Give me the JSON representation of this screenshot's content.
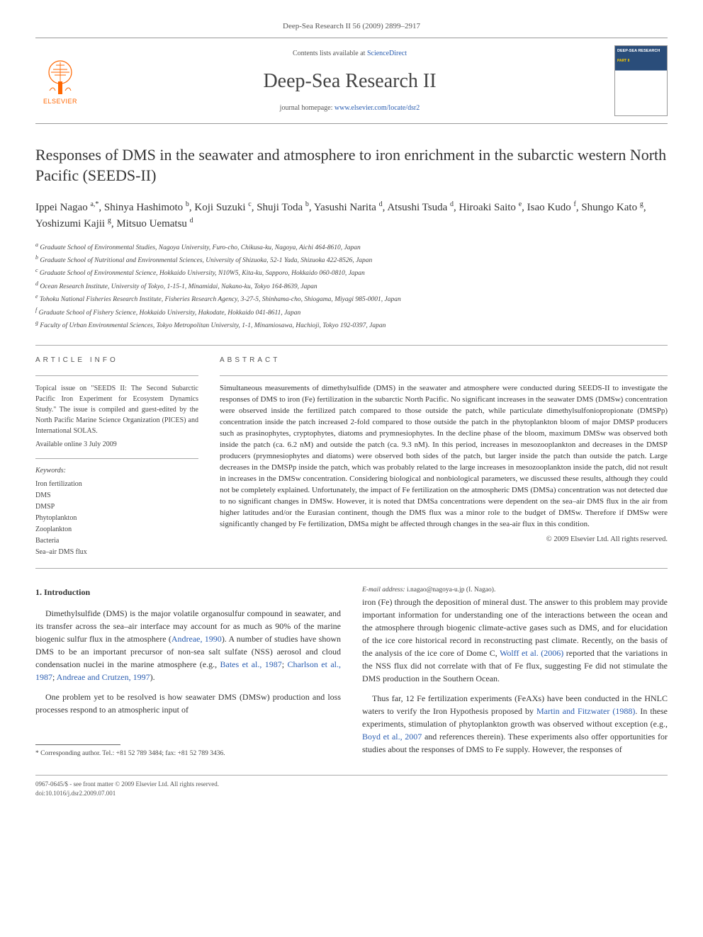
{
  "header_bar": "Deep-Sea Research II 56 (2009) 2899–2917",
  "masthead": {
    "contents_prefix": "Contents lists available at ",
    "contents_link": "ScienceDirect",
    "journal_name": "Deep-Sea Research II",
    "homepage_prefix": "journal homepage: ",
    "homepage_link": "www.elsevier.com/locate/dsr2",
    "publisher": "ELSEVIER"
  },
  "title": "Responses of DMS in the seawater and atmosphere to iron enrichment in the subarctic western North Pacific (SEEDS-II)",
  "authors_html": "Ippei Nagao <sup>a,*</sup>, Shinya Hashimoto <sup>b</sup>, Koji Suzuki <sup>c</sup>, Shuji Toda <sup>b</sup>, Yasushi Narita <sup>d</sup>, Atsushi Tsuda <sup>d</sup>, Hiroaki Saito <sup>e</sup>, Isao Kudo <sup>f</sup>, Shungo Kato <sup>g</sup>, Yoshizumi Kajii <sup>g</sup>, Mitsuo Uematsu <sup>d</sup>",
  "affiliations": [
    "a Graduate School of Environmental Studies, Nagoya University, Furo-cho, Chikusa-ku, Nagoya, Aichi 464-8610, Japan",
    "b Graduate School of Nutritional and Environmental Sciences, University of Shizuoka, 52-1 Yada, Shizuoka 422-8526, Japan",
    "c Graduate School of Environmental Science, Hokkaido University, N10W5, Kita-ku, Sapporo, Hokkaido 060-0810, Japan",
    "d Ocean Research Institute, University of Tokyo, 1-15-1, Minamidai, Nakano-ku, Tokyo 164-8639, Japan",
    "e Tohoku National Fisheries Research Institute, Fisheries Research Agency, 3-27-5, Shinhama-cho, Shiogama, Miyagi 985-0001, Japan",
    "f Graduate School of Fishery Science, Hokkaido University, Hakodate, Hokkaido 041-8611, Japan",
    "g Faculty of Urban Environmental Sciences, Tokyo Metropolitan University, 1-1, Minamiosawa, Hachioji, Tokyo 192-0397, Japan"
  ],
  "article_info": {
    "label": "ARTICLE INFO",
    "topical": "Topical issue on \"SEEDS II: The Second Subarctic Pacific Iron Experiment for Ecosystem Dynamics Study.\" The issue is compiled and guest-edited by the North Pacific Marine Science Organization (PICES) and International SOLAS.",
    "available": "Available online 3 July 2009",
    "keywords_label": "Keywords:",
    "keywords": [
      "Iron fertilization",
      "DMS",
      "DMSP",
      "Phytoplankton",
      "Zooplankton",
      "Bacteria",
      "Sea–air DMS flux"
    ]
  },
  "abstract": {
    "label": "ABSTRACT",
    "text": "Simultaneous measurements of dimethylsulfide (DMS) in the seawater and atmosphere were conducted during SEEDS-II to investigate the responses of DMS to iron (Fe) fertilization in the subarctic North Pacific. No significant increases in the seawater DMS (DMSw) concentration were observed inside the fertilized patch compared to those outside the patch, while particulate dimethylsulfoniopropionate (DMSPp) concentration inside the patch increased 2-fold compared to those outside the patch in the phytoplankton bloom of major DMSP producers such as prasinophytes, cryptophytes, diatoms and prymnesiophytes. In the decline phase of the bloom, maximum DMSw was observed both inside the patch (ca. 6.2 nM) and outside the patch (ca. 9.3 nM). In this period, increases in mesozooplankton and decreases in the DMSP producers (prymnesiophytes and diatoms) were observed both sides of the patch, but larger inside the patch than outside the patch. Large decreases in the DMSPp inside the patch, which was probably related to the large increases in mesozooplankton inside the patch, did not result in increases in the DMSw concentration. Considering biological and nonbiological parameters, we discussed these results, although they could not be completely explained. Unfortunately, the impact of Fe fertilization on the atmospheric DMS (DMSa) concentration was not detected due to no significant changes in DMSw. However, it is noted that DMSa concentrations were dependent on the sea–air DMS flux in the air from higher latitudes and/or the Eurasian continent, though the DMS flux was a minor role to the budget of DMSw. Therefore if DMSw were significantly changed by Fe fertilization, DMSa might be affected through changes in the sea-air flux in this condition.",
    "copyright": "© 2009 Elsevier Ltd. All rights reserved."
  },
  "body": {
    "heading": "1.  Introduction",
    "p1_a": "Dimethylsulfide (DMS) is the major volatile organosulfur compound in seawater, and its transfer across the sea–air interface may account for as much as 90% of the marine biogenic sulfur flux in the atmosphere (",
    "p1_link1": "Andreae, 1990",
    "p1_b": "). A number of studies have shown DMS to be an important precursor of non-sea salt sulfate (NSS) aerosol and cloud condensation nuclei in the marine atmosphere (e.g., ",
    "p1_link2": "Bates et al., 1987",
    "p1_c": "; ",
    "p1_link3": "Charlson et al., 1987",
    "p1_d": "; ",
    "p1_link4": "Andreae and Crutzen, 1997",
    "p1_e": ").",
    "p2": "One problem yet to be resolved is how seawater DMS (DMSw) production and loss processes respond to an atmospheric input of",
    "p3_a": "iron (Fe) through the deposition of mineral dust. The answer to this problem may provide important information for understanding one of the interactions between the ocean and the atmosphere through biogenic climate-active gases such as DMS, and for elucidation of the ice core historical record in reconstructing past climate. Recently, on the basis of the analysis of the ice core of Dome C, ",
    "p3_link1": "Wolff et al. (2006)",
    "p3_b": " reported that the variations in the NSS flux did not correlate with that of Fe flux, suggesting Fe did not stimulate the DMS production in the Southern Ocean.",
    "p4_a": "Thus far, 12 Fe fertilization experiments (FeAXs) have been conducted in the HNLC waters to verify the Iron Hypothesis proposed by ",
    "p4_link1": "Martin and Fitzwater (1988)",
    "p4_b": ". In these experiments, stimulation of phytoplankton growth was observed without exception (e.g., ",
    "p4_link2": "Boyd et al., 2007",
    "p4_c": " and references therein). These experiments also offer opportunities for studies about the responses of DMS to Fe supply. However, the responses of"
  },
  "footnote": {
    "corr": "* Corresponding author. Tel.: +81 52 789 3484; fax: +81 52 789 3436.",
    "email_label": "E-mail address:",
    "email": " i.nagao@nagoya-u.jp (I. Nagao)."
  },
  "bottom": {
    "left1": "0967-0645/$ - see front matter © 2009 Elsevier Ltd. All rights reserved.",
    "left2": "doi:10.1016/j.dsr2.2009.07.001"
  },
  "colors": {
    "link": "#2a5db0",
    "text": "#333333",
    "elsevier_orange": "#ff6600"
  }
}
